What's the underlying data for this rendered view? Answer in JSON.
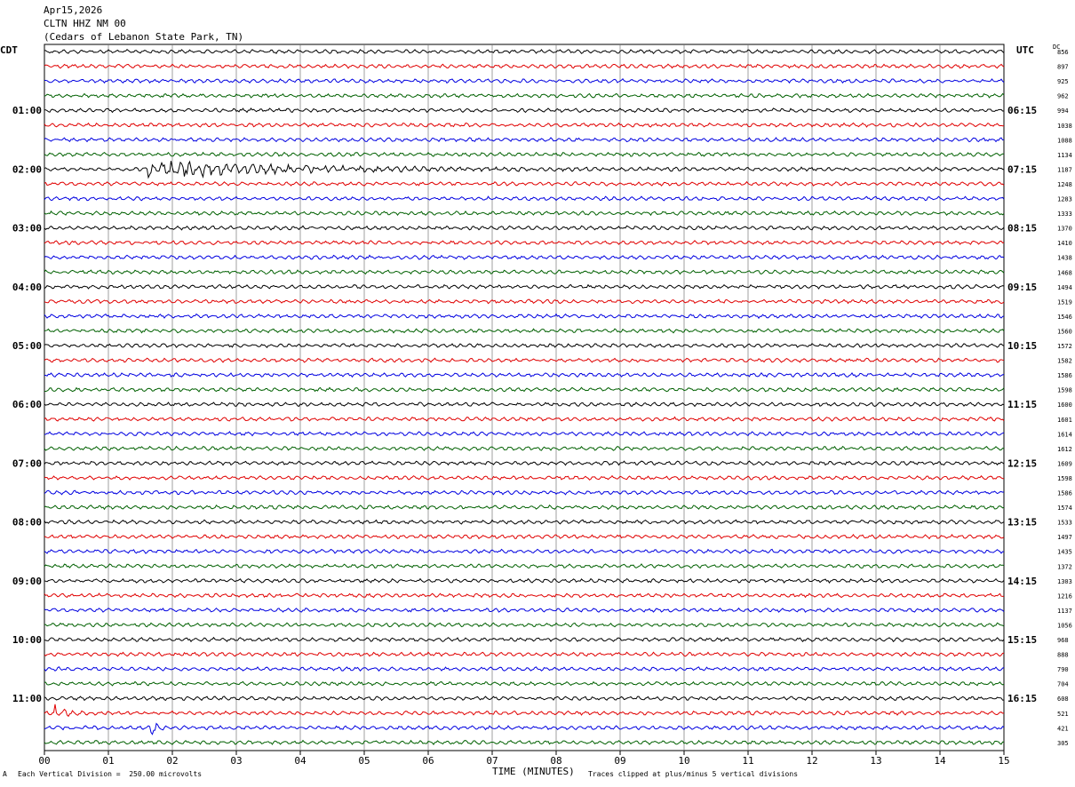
{
  "header": {
    "date": "Apr15,2026",
    "station": "CLTN HHZ NM 00",
    "location": "(Cedars of Lebanon State Park, TN)"
  },
  "left_timezone": "CDT",
  "right_timezone": "UTC",
  "dc_label": "DC",
  "footer": {
    "left_note": "Each Vertical Division =  250.00 microvolts",
    "right_note": "Traces clipped at plus/minus 5 vertical divisions",
    "x_title": "TIME (MINUTES)",
    "corner_mark": "A"
  },
  "colors": {
    "cycle": [
      "#000000",
      "#e00000",
      "#0000e0",
      "#006000"
    ],
    "grid": "#777777"
  },
  "chart_data": {
    "type": "line",
    "title": "CLTN HHZ NM 00",
    "xlabel": "TIME (MINUTES)",
    "xlim": [
      0,
      15
    ],
    "x_ticks": [
      "00",
      "01",
      "02",
      "03",
      "04",
      "05",
      "06",
      "07",
      "08",
      "09",
      "10",
      "11",
      "12",
      "13",
      "14",
      "15"
    ],
    "rows": 48,
    "left_hour_labels": [
      "01:00",
      "02:00",
      "03:00",
      "04:00",
      "05:00",
      "06:00",
      "07:00",
      "08:00",
      "09:00",
      "10:00",
      "11:00"
    ],
    "right_hour_labels": [
      "06:15",
      "07:15",
      "08:15",
      "09:15",
      "10:15",
      "11:15",
      "12:15",
      "13:15",
      "14:15",
      "15:15",
      "16:15"
    ],
    "dc_offsets": [
      856,
      897,
      925,
      962,
      994,
      1038,
      1088,
      1134,
      1187,
      1248,
      1283,
      1333,
      1370,
      1410,
      1438,
      1468,
      1494,
      1519,
      1546,
      1560,
      1572,
      1582,
      1586,
      1598,
      1600,
      1601,
      1614,
      1612,
      1609,
      1598,
      1586,
      1574,
      1533,
      1497,
      1435,
      1372,
      1303,
      1216,
      1137,
      1056,
      968,
      888,
      790,
      704,
      608,
      521,
      421,
      305
    ],
    "events": [
      {
        "row": 8,
        "start_min": 1.6,
        "note": "earthquake signal"
      },
      {
        "row": 45,
        "start_min": 0.15,
        "note": "spike"
      },
      {
        "row": 46,
        "start_min": 1.65,
        "note": "spike"
      }
    ]
  }
}
